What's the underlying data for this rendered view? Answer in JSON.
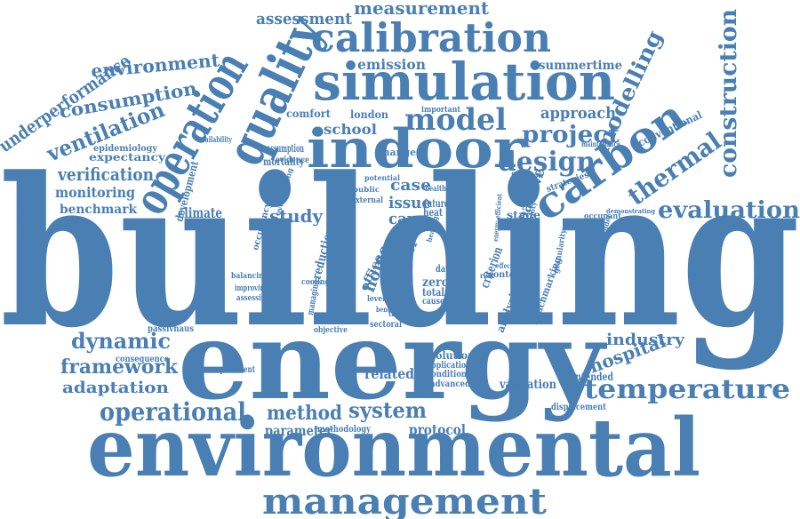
{
  "palette": {
    "word": "#4a7fb3",
    "background": "#ffffff"
  },
  "words": [
    "building",
    "energy",
    "environmental",
    "management",
    "indoor",
    "simulation",
    "calibration",
    "quality",
    "operation",
    "carbon",
    "construction",
    "evaluation",
    "temperature",
    "thermal",
    "modelling",
    "model",
    "design",
    "project",
    "approach",
    "measurement",
    "assessment",
    "emission",
    "summertime",
    "environment",
    "consumption",
    "underperformance",
    "ventilation",
    "verification",
    "monitoring",
    "benchmark",
    "school",
    "comfort",
    "london",
    "important",
    "case",
    "issue",
    "care",
    "study",
    "passive",
    "stage",
    "occupant",
    "climate",
    "development",
    "conventional",
    "dynamic",
    "framework",
    "adaptation",
    "operational",
    "method",
    "system",
    "parameter",
    "protocol",
    "related",
    "requirement",
    "consequence",
    "passivhaus",
    "validation",
    "unintended",
    "displacement",
    "industry",
    "hospital",
    "home",
    "current",
    "occupancy",
    "zero",
    "total",
    "cause",
    "data",
    "criterion",
    "accuracy",
    "context",
    "effective",
    "solution",
    "application",
    "condition",
    "advanced",
    "sectoral",
    "objective",
    "methodology",
    "cooling",
    "reduction",
    "overheating",
    "evidence",
    "change",
    "mortality",
    "assumption",
    "expectancy",
    "epidemiology",
    "availability",
    "balancing",
    "improving",
    "assessing",
    "managing",
    "finding",
    "target",
    "benefit",
    "level",
    "heat",
    "future",
    "risk",
    "health",
    "office",
    "paper",
    "strategies",
    "maintenance",
    "function",
    "potential",
    "public",
    "external",
    "energy-efficient",
    "uncertainty",
    "granularity",
    "heating",
    "benchmarking",
    "analysis",
    "uncertainties",
    "stakeholder",
    "demonstrating"
  ]
}
